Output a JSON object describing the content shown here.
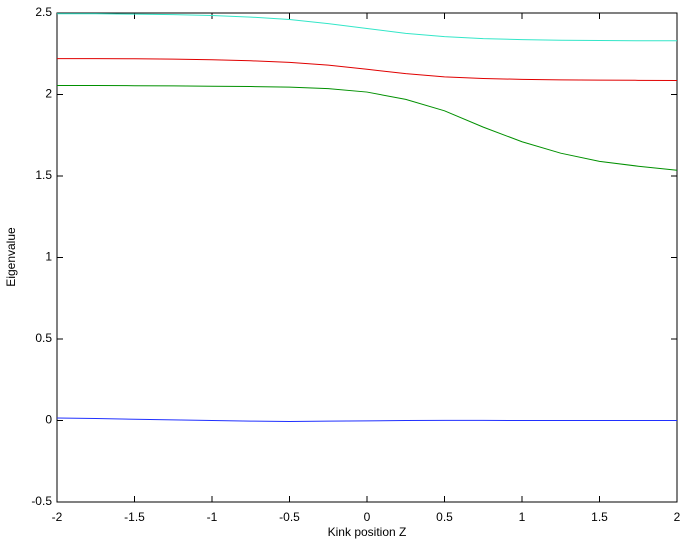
{
  "chart_data": {
    "type": "line",
    "xlabel": "Kink position Z",
    "ylabel": "Eigenvalue",
    "x": [
      -2,
      -1.75,
      -1.5,
      -1.25,
      -1,
      -0.75,
      -0.5,
      -0.25,
      0,
      0.25,
      0.5,
      0.75,
      1,
      1.25,
      1.5,
      1.75,
      2
    ],
    "series": [
      {
        "color": "#33e6c8",
        "values": [
          2.495,
          2.495,
          2.493,
          2.49,
          2.485,
          2.475,
          2.46,
          2.435,
          2.405,
          2.375,
          2.355,
          2.343,
          2.337,
          2.333,
          2.331,
          2.33,
          2.33
        ]
      },
      {
        "color": "#e00000",
        "values": [
          2.22,
          2.22,
          2.219,
          2.217,
          2.213,
          2.207,
          2.197,
          2.18,
          2.155,
          2.128,
          2.108,
          2.098,
          2.093,
          2.09,
          2.088,
          2.087,
          2.086
        ]
      },
      {
        "color": "#009000",
        "values": [
          2.055,
          2.055,
          2.054,
          2.053,
          2.051,
          2.049,
          2.045,
          2.036,
          2.015,
          1.97,
          1.9,
          1.8,
          1.71,
          1.64,
          1.59,
          1.56,
          1.535
        ]
      },
      {
        "color": "#2030ff",
        "values": [
          0.015,
          0.012,
          0.008,
          0.004,
          0,
          -0.004,
          -0.006,
          -0.004,
          -0.002,
          0,
          0.001,
          0.001,
          0,
          0,
          0,
          0,
          0
        ]
      }
    ],
    "xlim": [
      -2,
      2
    ],
    "ylim": [
      -0.5,
      2.5
    ],
    "xticks": [
      -2,
      -1.5,
      -1,
      -0.5,
      0,
      0.5,
      1,
      1.5,
      2
    ],
    "yticks": [
      -0.5,
      0,
      0.5,
      1,
      1.5,
      2,
      2.5
    ],
    "grid": false
  }
}
